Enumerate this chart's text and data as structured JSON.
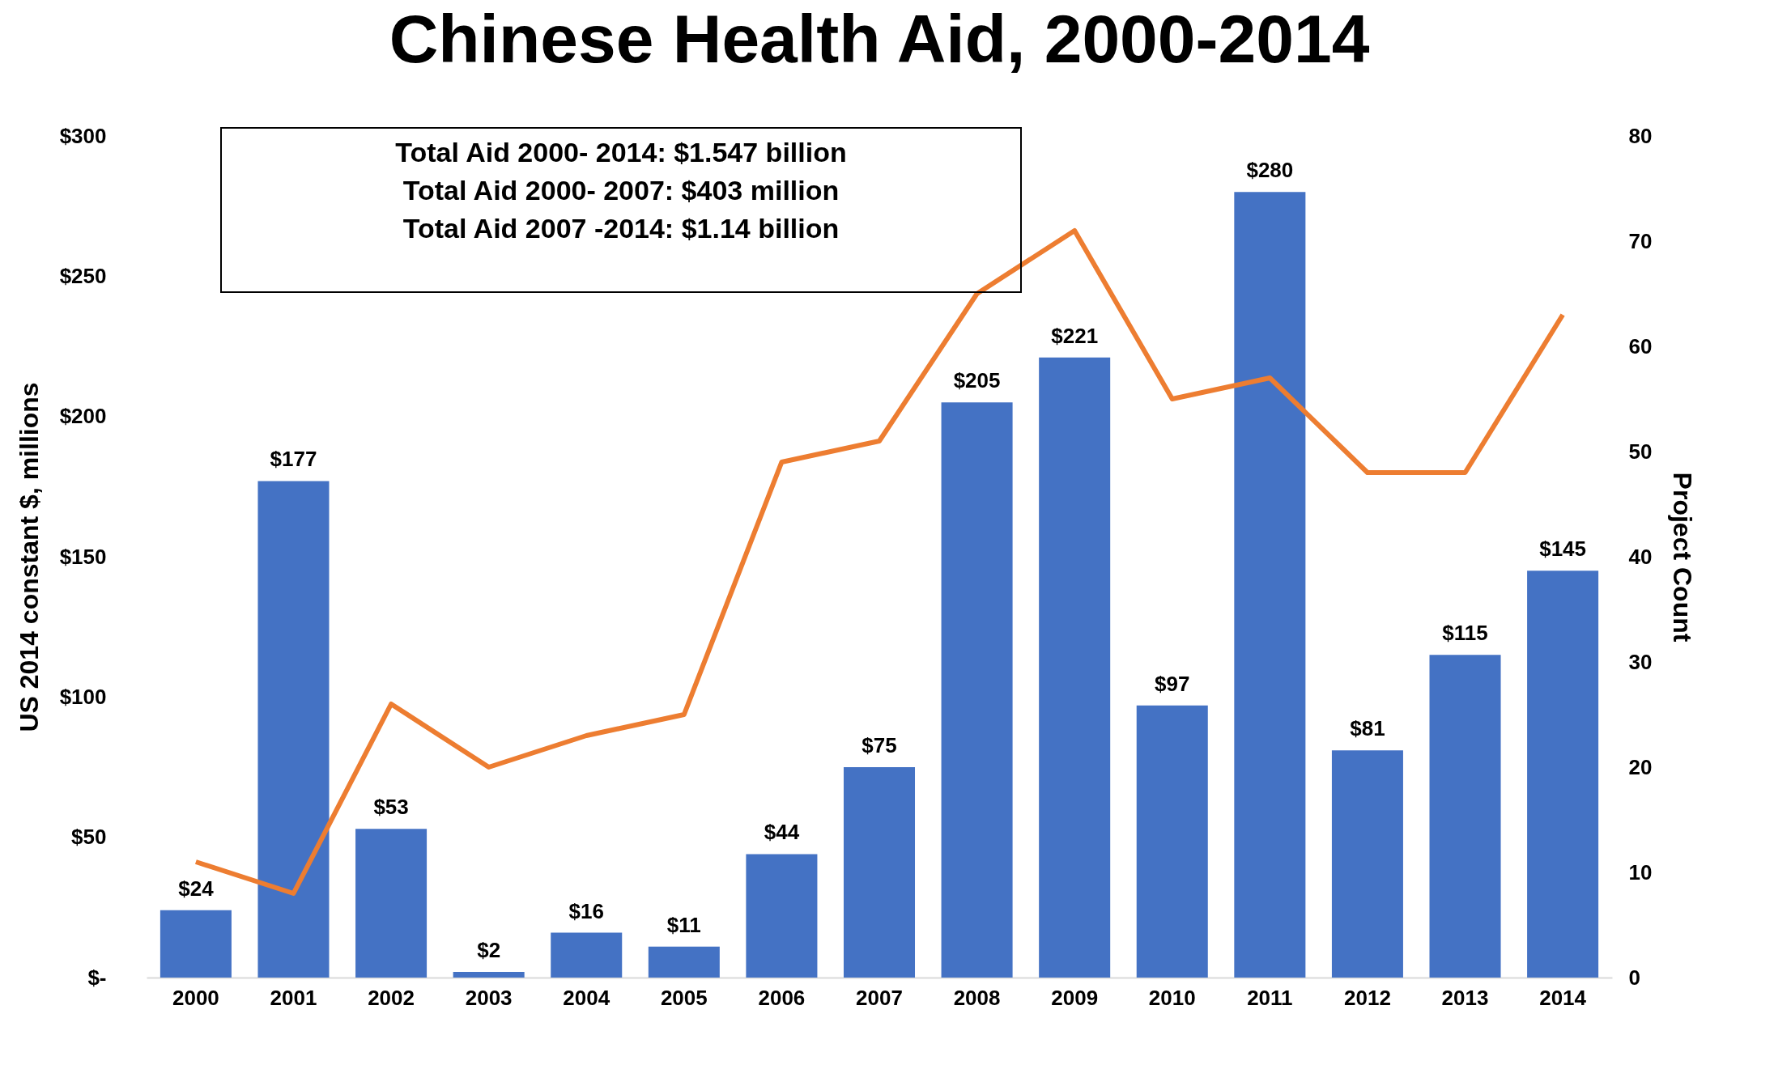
{
  "chart_data": {
    "type": "bar",
    "title": "Chinese Health Aid, 2000-2014",
    "ylabel": "US 2014 constant $, millions",
    "y2label": "Project Count",
    "categories": [
      "2000",
      "2001",
      "2002",
      "2003",
      "2004",
      "2005",
      "2006",
      "2007",
      "2008",
      "2009",
      "2010",
      "2011",
      "2012",
      "2013",
      "2014"
    ],
    "series": [
      {
        "color": "#4472c4",
        "values": [
          24,
          177,
          53,
          2,
          16,
          11,
          44,
          75,
          205,
          221,
          97,
          280,
          81,
          115,
          145
        ],
        "value_labels": [
          "$24",
          "$177",
          "$53",
          "$2",
          "$16",
          "$11",
          "$44",
          "$75",
          "$205",
          "$221",
          "$97",
          "$280",
          "$81",
          "$115",
          "$145"
        ]
      },
      {
        "type": "line",
        "axis": "y2",
        "color": "#ed7d31",
        "values": [
          11,
          8,
          26,
          20,
          23,
          25,
          49,
          51,
          65,
          71,
          55,
          57,
          48,
          48,
          63
        ]
      }
    ],
    "ylim": [
      0,
      300
    ],
    "yticks": [
      {
        "value": 0,
        "label": "$-"
      },
      {
        "value": 50,
        "label": "$50"
      },
      {
        "value": 100,
        "label": "$100"
      },
      {
        "value": 150,
        "label": "$150"
      },
      {
        "value": 200,
        "label": "$200"
      },
      {
        "value": 250,
        "label": "$250"
      },
      {
        "value": 300,
        "label": "$300"
      }
    ],
    "y2lim": [
      0,
      80
    ],
    "y2ticks": [
      0,
      10,
      20,
      30,
      40,
      50,
      60,
      70,
      80
    ],
    "annotations": [
      "Total Aid 2000- 2014: $1.547 billion",
      "Total Aid 2000- 2007: $403 million",
      "Total Aid 2007 -2014: $1.14 billion"
    ],
    "grid": false,
    "marker": "none",
    "line_style": "solid"
  }
}
